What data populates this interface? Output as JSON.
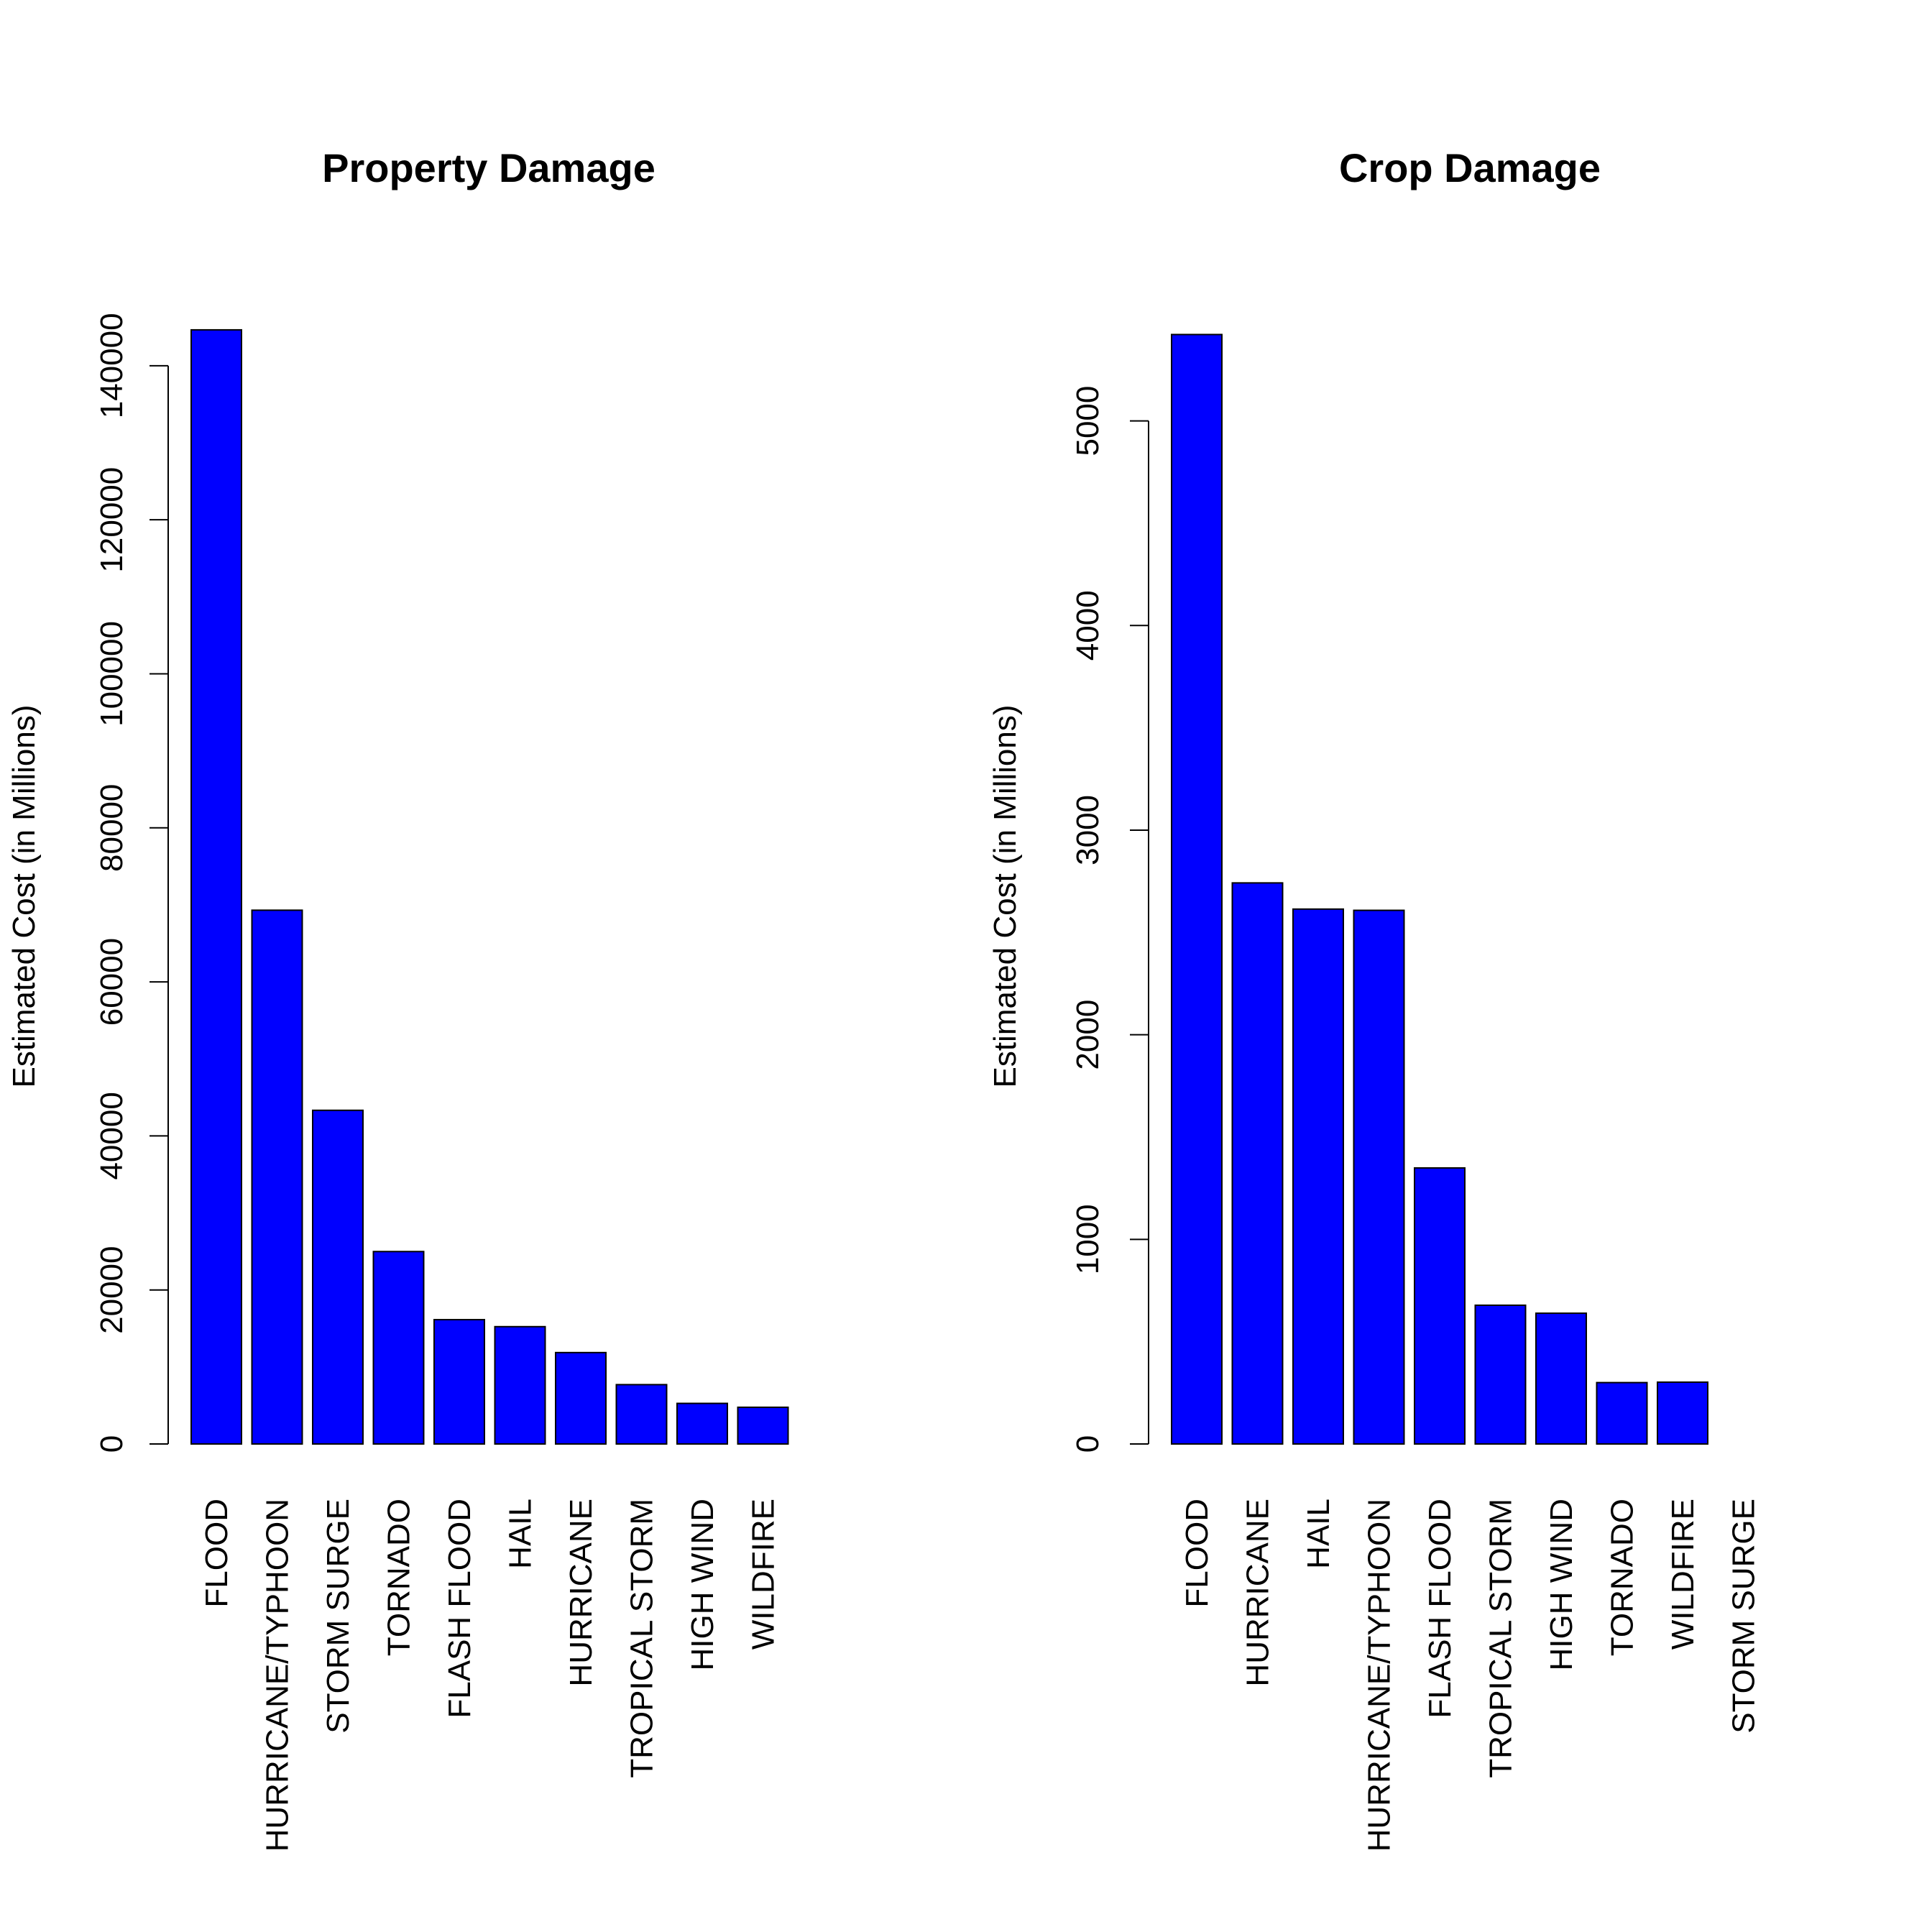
{
  "colors": {
    "bar_fill": "#0000FF",
    "bar_stroke": "#000000",
    "background": "#FFFFFF"
  },
  "chart_data": [
    {
      "type": "bar",
      "title": "Property Damage",
      "xlabel": "",
      "ylabel": "Estimated Cost  (in Millions)",
      "ylim": [
        0,
        144000
      ],
      "yticks": [
        0,
        20000,
        40000,
        60000,
        80000,
        100000,
        120000,
        140000
      ],
      "categories": [
        "FLOOD",
        "HURRICANE/TYPHOON",
        "STORM SURGE",
        "TORNADO",
        "FLASH FLOOD",
        "HAIL",
        "HURRICANE",
        "TROPICAL STORM",
        "HIGH WIND",
        "WILDFIRE"
      ],
      "values": [
        144660,
        69306,
        43324,
        24985,
        16141,
        15233,
        11868,
        7704,
        5271,
        4765
      ],
      "grid": false,
      "legend": "none"
    },
    {
      "type": "bar",
      "title": "Crop Damage",
      "xlabel": "",
      "ylabel": "Estimated Cost (in Millions)",
      "ylim": [
        0,
        5420
      ],
      "yticks": [
        0,
        1000,
        2000,
        3000,
        4000,
        5000
      ],
      "categories": [
        "FLOOD",
        "HURRICANE",
        "HAIL",
        "HURRICANE/TYPHOON",
        "FLASH FLOOD",
        "TROPICAL STORM",
        "HIGH WIND",
        "TORNADO",
        "WILDFIRE",
        "STORM SURGE"
      ],
      "values": [
        5422,
        2742,
        2614,
        2608,
        1349,
        678,
        639,
        300,
        302,
        0
      ],
      "grid": false,
      "legend": "none"
    }
  ]
}
